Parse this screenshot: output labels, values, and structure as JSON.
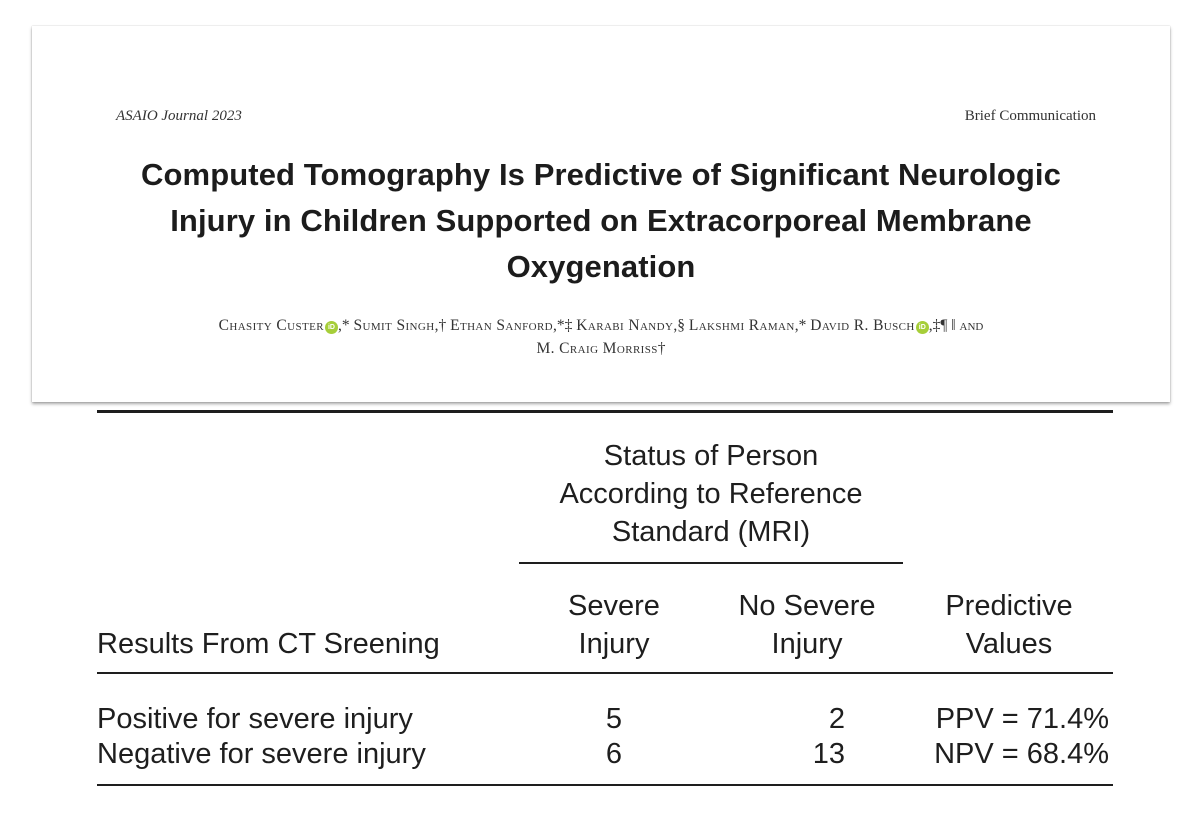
{
  "header": {
    "journal": "ASAIO Journal 2023",
    "section": "Brief Communication",
    "title_lines": [
      "Computed Tomography Is Predictive of Significant Neurologic",
      "Injury in Children Supported on Extracorporeal Membrane",
      "Oxygenation"
    ],
    "authors": [
      {
        "name": "Chasity Custer",
        "orcid": true,
        "marks": ",*"
      },
      {
        "name": "Sumit Singh",
        "orcid": false,
        "marks": ",†"
      },
      {
        "name": "Ethan Sanford",
        "orcid": false,
        "marks": ",*‡"
      },
      {
        "name": "Karabi Nandy",
        "orcid": false,
        "marks": ",§"
      },
      {
        "name": "Lakshmi Raman",
        "orcid": false,
        "marks": ",*"
      },
      {
        "name": "David R. Busch",
        "orcid": true,
        "marks": ",‡¶ ‖"
      },
      {
        "name": "M. Craig Morriss",
        "orcid": false,
        "marks": "†"
      }
    ],
    "author_conjunction": "and",
    "orcid_label": "iD"
  },
  "table": {
    "spanner_lines": [
      "Status of Person",
      "According to Reference",
      "Standard (MRI)"
    ],
    "row_header": "Results From CT Sreening",
    "col_severe": [
      "Severe",
      "Injury"
    ],
    "col_no_severe": [
      "No Severe",
      "Injury"
    ],
    "col_predictive": [
      "Predictive",
      "Values"
    ],
    "rows": [
      {
        "label": "Positive for severe injury",
        "severe": "5",
        "no_severe": "2",
        "predictive": "PPV = 71.4%"
      },
      {
        "label": "Negative for severe injury",
        "severe": "6",
        "no_severe": "13",
        "predictive": "NPV = 68.4%"
      }
    ]
  }
}
